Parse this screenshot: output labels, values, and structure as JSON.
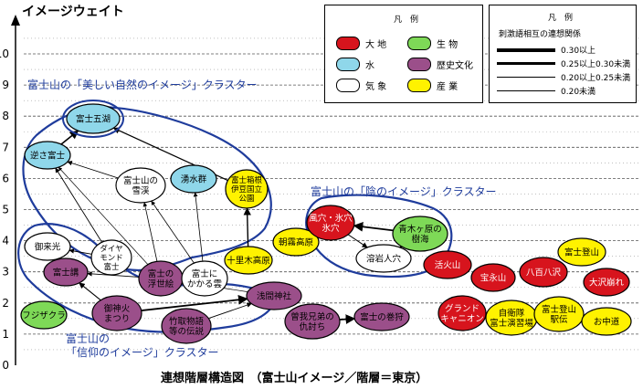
{
  "y_axis": {
    "label": "イメージウェイト",
    "ticks": [
      "0",
      "1",
      "2",
      "3",
      "4",
      "5",
      "6",
      "7",
      "8",
      "9",
      "10"
    ]
  },
  "caption": "連想階層構造図　（富士山イメージ／階層＝東京）",
  "clusters": [
    {
      "name": "富士山の「美しい自然のイメージ」クラスター"
    },
    {
      "name": "富士山の「陰のイメージ」クラスター"
    },
    {
      "name": "富士山の「信仰のイメージ」クラスター",
      "name_line1": "富士山の",
      "name_line2": "「信仰のイメージ」クラスター"
    }
  ],
  "legend_categories": {
    "title": "凡　例",
    "items": [
      {
        "label": "大 地",
        "color": "#d7141d"
      },
      {
        "label": "生 物",
        "color": "#7ed957"
      },
      {
        "label": "水",
        "color": "#8fd7ea"
      },
      {
        "label": "歴史文化",
        "color": "#9b4f8a"
      },
      {
        "label": "気 象",
        "color": "#ffffff"
      },
      {
        "label": "産 業",
        "color": "#fff200"
      }
    ]
  },
  "legend_strength": {
    "title": "凡　例",
    "subtitle": "刺激語相互の連想関係",
    "items": [
      {
        "label": "0.30以上"
      },
      {
        "label": "0.25以上0.30未満"
      },
      {
        "label": "0.20以上0.25未満"
      },
      {
        "label": "0.20未満"
      }
    ]
  },
  "nodes": [
    {
      "id": "fujigoko",
      "lines": [
        "富士五湖"
      ],
      "category": "water",
      "highlight": true
    },
    {
      "id": "sakasa",
      "lines": [
        "逆さ富士"
      ],
      "category": "water"
    },
    {
      "id": "settkei",
      "lines": [
        "富士山の",
        "雪渓"
      ],
      "category": "weather"
    },
    {
      "id": "wakimizu",
      "lines": [
        "湧水群"
      ],
      "category": "water"
    },
    {
      "id": "koen",
      "lines": [
        "富士箱根",
        "伊豆国立",
        "公園"
      ],
      "category": "industry"
    },
    {
      "id": "goraiko",
      "lines": [
        "御来光"
      ],
      "category": "weather"
    },
    {
      "id": "diamond",
      "lines": [
        "ダイヤ",
        "モンド",
        "富士"
      ],
      "category": "weather"
    },
    {
      "id": "fujiko",
      "lines": [
        "富士講"
      ],
      "category": "history"
    },
    {
      "id": "ukiyoe",
      "lines": [
        "富士の",
        "浮世絵"
      ],
      "category": "history"
    },
    {
      "id": "kumo",
      "lines": [
        "富士に",
        "かかる雲"
      ],
      "category": "weather"
    },
    {
      "id": "jurigi",
      "lines": [
        "十里木高原"
      ],
      "category": "industry"
    },
    {
      "id": "asagiri",
      "lines": [
        "朝霧高原"
      ],
      "category": "industry"
    },
    {
      "id": "fujizakura",
      "lines": [
        "フジザクラ"
      ],
      "category": "biology"
    },
    {
      "id": "omikabi",
      "lines": [
        "御神火",
        "まつり"
      ],
      "category": "history"
    },
    {
      "id": "taketori",
      "lines": [
        "竹取物語",
        "等の伝説"
      ],
      "category": "history"
    },
    {
      "id": "sengen",
      "lines": [
        "浅間神社"
      ],
      "category": "history"
    },
    {
      "id": "fuketsu",
      "lines": [
        "風穴・氷穴",
        "氷穴"
      ],
      "category": "land"
    },
    {
      "id": "jukai",
      "lines": [
        "青木ヶ原の",
        "樹海"
      ],
      "category": "biology"
    },
    {
      "id": "yogan",
      "lines": [
        "溶岩人穴"
      ],
      "category": "weather"
    },
    {
      "id": "soga",
      "lines": [
        "曽我兄弟の",
        "仇討ち"
      ],
      "category": "history"
    },
    {
      "id": "makigari",
      "lines": [
        "富士の巻狩"
      ],
      "category": "history"
    },
    {
      "id": "kazan",
      "lines": [
        "活火山"
      ],
      "category": "land"
    },
    {
      "id": "hoeizan",
      "lines": [
        "宝永山"
      ],
      "category": "land"
    },
    {
      "id": "happachi",
      "lines": [
        "八百八沢"
      ],
      "category": "land"
    },
    {
      "id": "tozan",
      "lines": [
        "富士登山"
      ],
      "category": "industry"
    },
    {
      "id": "osawa",
      "lines": [
        "大沢崩れ"
      ],
      "category": "land"
    },
    {
      "id": "canyon",
      "lines": [
        "グランド",
        "キャニオン"
      ],
      "category": "land"
    },
    {
      "id": "jieitai",
      "lines": [
        "自衛隊",
        "富士演習場"
      ],
      "category": "industry"
    },
    {
      "id": "ekiden",
      "lines": [
        "富士登山",
        "駅伝"
      ],
      "category": "industry"
    },
    {
      "id": "ochudo",
      "lines": [
        "お中道"
      ],
      "category": "industry"
    }
  ]
}
